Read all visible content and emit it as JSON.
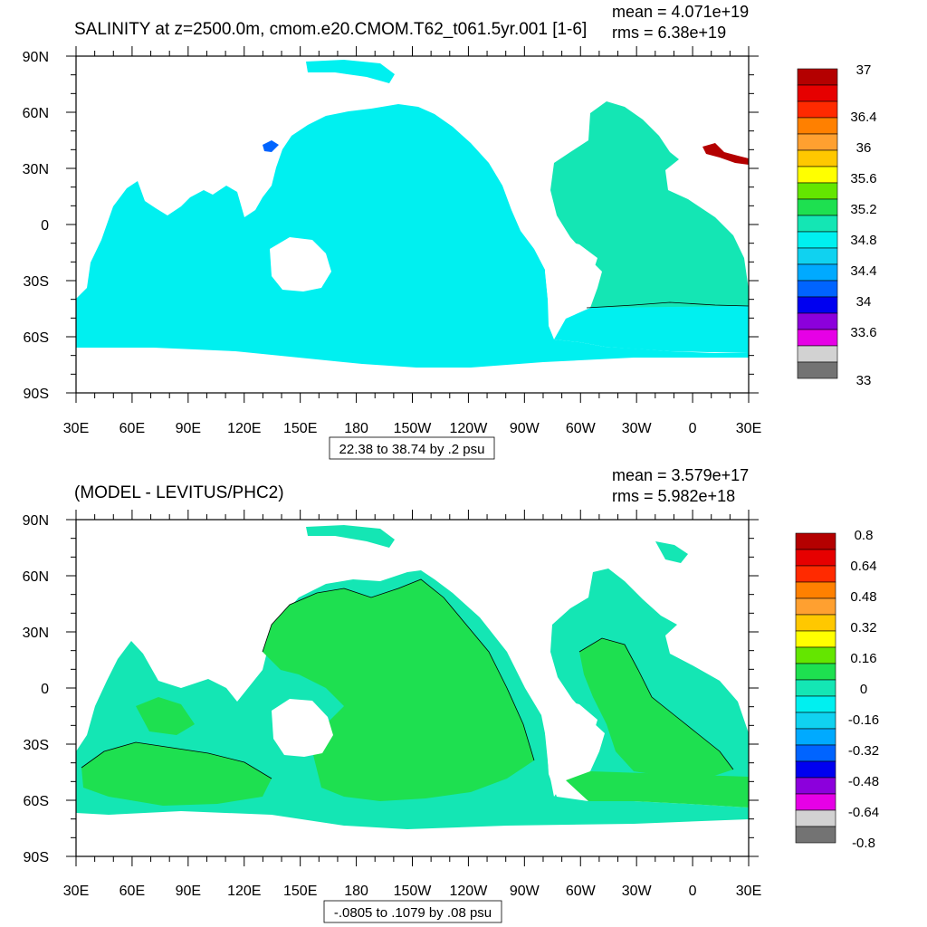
{
  "chart_data": [
    {
      "type": "heatmap",
      "title": "SALINITY at z=2500.0m, cmom.e20.CMOM.T62_t061.5yr.001 [1-6]",
      "stats": {
        "mean": "mean = 4.071e+19",
        "rms": "rms = 6.38e+19"
      },
      "x_ticks": [
        "30E",
        "60E",
        "90E",
        "120E",
        "150E",
        "180",
        "150W",
        "120W",
        "90W",
        "60W",
        "30W",
        "0",
        "30E"
      ],
      "y_ticks": [
        "90N",
        "60N",
        "30N",
        "0",
        "30S",
        "60S",
        "90S"
      ],
      "xlim": [
        30,
        390
      ],
      "ylim": [
        -90,
        90
      ],
      "range_label": "22.38 to 38.74 by .2 psu",
      "colorbar": {
        "labels": [
          "37",
          "36.4",
          "36",
          "35.6",
          "35.2",
          "34.8",
          "34.4",
          "34",
          "33.6",
          "33"
        ],
        "colors": [
          "#b40000",
          "#e60000",
          "#ff2a00",
          "#ff8000",
          "#ffa030",
          "#ffc800",
          "#ffff00",
          "#64e600",
          "#1ee050",
          "#14e6b4",
          "#00f0f0",
          "#10d2f0",
          "#00aaff",
          "#0064ff",
          "#0000f0",
          "#8c00dc",
          "#e600e6",
          "#d2d2d2",
          "#737373"
        ]
      },
      "field_colors": {
        "pacific_indian": "#00f0f0",
        "atlantic": "#14e6b4",
        "mediterranean": "#b40000",
        "japan_sea": "#0064ff"
      }
    },
    {
      "type": "heatmap",
      "title": "(MODEL - LEVITUS/PHC2)",
      "stats": {
        "mean": "mean = 3.579e+17",
        "rms": "rms = 5.982e+18"
      },
      "x_ticks": [
        "30E",
        "60E",
        "90E",
        "120E",
        "150E",
        "180",
        "150W",
        "120W",
        "90W",
        "60W",
        "30W",
        "0",
        "30E"
      ],
      "y_ticks": [
        "90N",
        "60N",
        "30N",
        "0",
        "30S",
        "60S",
        "90S"
      ],
      "xlim": [
        30,
        390
      ],
      "ylim": [
        -90,
        90
      ],
      "range_label": "-.0805 to .1079 by .08 psu",
      "colorbar": {
        "labels": [
          "0.8",
          "0.64",
          "0.48",
          "0.32",
          "0.16",
          "0",
          "-0.16",
          "-0.32",
          "-0.48",
          "-0.64",
          "-0.8"
        ],
        "colors": [
          "#b40000",
          "#e60000",
          "#ff2a00",
          "#ff8000",
          "#ffa030",
          "#ffc800",
          "#ffff00",
          "#64e600",
          "#1ee050",
          "#14e6b4",
          "#00f0f0",
          "#10d2f0",
          "#00aaff",
          "#0064ff",
          "#0000f0",
          "#8c00dc",
          "#e600e6",
          "#d2d2d2",
          "#737373"
        ]
      },
      "field_colors": {
        "positive": "#1ee050",
        "negative": "#14e6b4"
      }
    }
  ]
}
